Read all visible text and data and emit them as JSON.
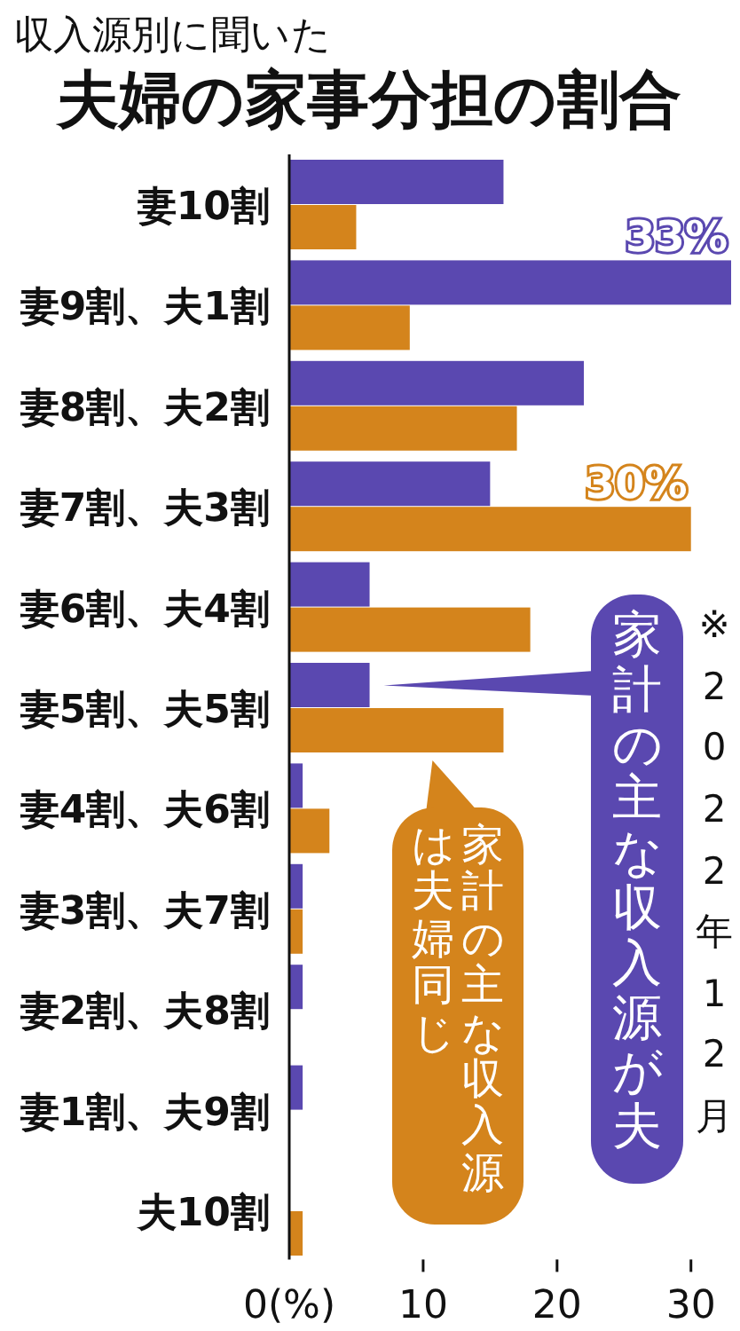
{
  "chart_data": {
    "type": "bar",
    "orientation": "horizontal",
    "title": "夫婦の家事分担の割合",
    "subtitle": "収入源別に聞いた",
    "categories": [
      "妻10割",
      "妻9割、夫1割",
      "妻8割、夫2割",
      "妻7割、夫3割",
      "妻6割、夫4割",
      "妻5割、夫5割",
      "妻4割、夫6割",
      "妻3割、夫7割",
      "妻2割、夫8割",
      "妻1割、夫9割",
      "夫10割"
    ],
    "series": [
      {
        "name": "家計の主な収入源が夫",
        "color": "#5a48b0",
        "values": [
          16,
          33,
          22,
          15,
          6,
          6,
          1,
          1,
          1,
          1,
          0
        ],
        "value_labels": [
          null,
          "33%",
          null,
          null,
          null,
          null,
          null,
          null,
          null,
          null,
          null
        ]
      },
      {
        "name": "家計の主な収入源は夫婦同じ",
        "color": "#d4841c",
        "values": [
          5,
          9,
          17,
          30,
          18,
          16,
          3,
          1,
          0,
          0,
          1
        ],
        "value_labels": [
          null,
          null,
          null,
          "30%",
          null,
          null,
          null,
          null,
          null,
          null,
          null
        ]
      }
    ],
    "xlim": [
      0,
      33
    ],
    "xticks": [
      {
        "value": 0,
        "label": "0(%)"
      },
      10,
      20,
      30
    ],
    "grid": false,
    "annotations": [
      "※2022年12月"
    ]
  }
}
